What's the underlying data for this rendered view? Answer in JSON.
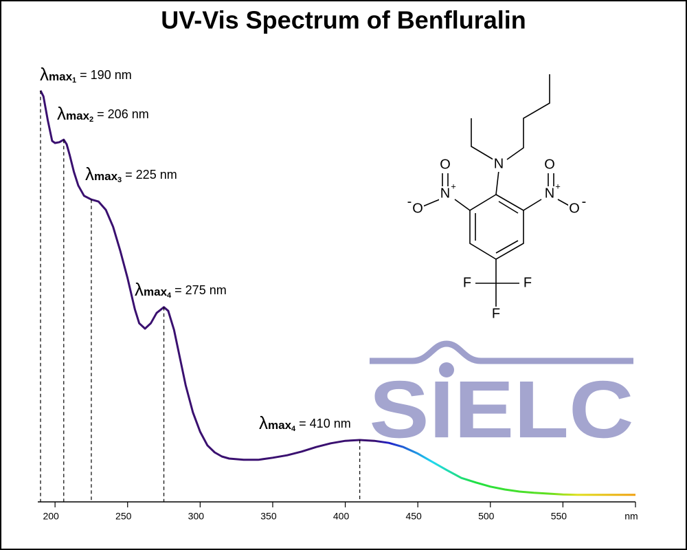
{
  "chart_data": {
    "type": "line",
    "title": "UV-Vis Spectrum of Benfluralin",
    "x": [
      190,
      192,
      195,
      198,
      200,
      203,
      206,
      208,
      210,
      213,
      216,
      220,
      225,
      230,
      235,
      240,
      245,
      250,
      255,
      258,
      262,
      266,
      270,
      275,
      278,
      282,
      286,
      290,
      295,
      300,
      305,
      310,
      315,
      320,
      330,
      340,
      350,
      360,
      370,
      380,
      390,
      400,
      410,
      420,
      430,
      440,
      450,
      460,
      470,
      480,
      490,
      500,
      510,
      520,
      530,
      540,
      550,
      560,
      580,
      600
    ],
    "series": [
      {
        "color": "#3a1070",
        "values": [
          0.997,
          0.983,
          0.925,
          0.875,
          0.87,
          0.872,
          0.878,
          0.867,
          0.842,
          0.8,
          0.767,
          0.742,
          0.733,
          0.728,
          0.708,
          0.667,
          0.608,
          0.542,
          0.467,
          0.433,
          0.42,
          0.433,
          0.458,
          0.472,
          0.463,
          0.417,
          0.35,
          0.283,
          0.217,
          0.17,
          0.137,
          0.12,
          0.11,
          0.105,
          0.102,
          0.102,
          0.107,
          0.113,
          0.122,
          0.133,
          0.142,
          0.148,
          0.15,
          0.148,
          0.143,
          0.133,
          0.117,
          0.097,
          0.077,
          0.058,
          0.047,
          0.037,
          0.03,
          0.025,
          0.022,
          0.02,
          0.018,
          0.017,
          0.017,
          0.017
        ]
      }
    ],
    "gradient": [
      {
        "x": 420,
        "color": "#3a1070"
      },
      {
        "x": 430,
        "color": "#2020c8"
      },
      {
        "x": 460,
        "color": "#20d8f0"
      },
      {
        "x": 490,
        "color": "#20e040"
      },
      {
        "x": 540,
        "color": "#60e020"
      },
      {
        "x": 560,
        "color": "#e0e020"
      },
      {
        "x": 600,
        "color": "#f0a010"
      }
    ],
    "xlim": [
      190,
      600
    ],
    "ylim": [
      0,
      1
    ],
    "xticks": [
      200,
      250,
      300,
      350,
      400,
      450,
      500,
      550,
      {
        "value": 600,
        "label": "nm"
      }
    ],
    "annotations": [
      {
        "prefix": "λ",
        "sub1": "max",
        "sub2": "1",
        "label": "= 190 nm",
        "x": 190
      },
      {
        "prefix": "λ",
        "sub1": "max",
        "sub2": "2",
        "label": "= 206 nm",
        "x": 206
      },
      {
        "prefix": "λ",
        "sub1": "max",
        "sub2": "3",
        "label": "= 225 nm",
        "x": 225
      },
      {
        "prefix": "λ",
        "sub1": "max",
        "sub2": "4",
        "label": "= 275 nm",
        "x": 275
      },
      {
        "prefix": "λ",
        "sub1": "max",
        "sub2": "4",
        "label": "= 410 nm",
        "x": 410
      }
    ],
    "watermark": "SIELC",
    "structure": {
      "atoms": [
        {
          "label": "N"
        },
        {
          "label": "O"
        },
        {
          "label": "N",
          "charge": "+"
        },
        {
          "label": "O",
          "charge": "-"
        },
        {
          "label": "O"
        },
        {
          "label": "N",
          "charge": "+"
        },
        {
          "label": "O",
          "charge": "-"
        },
        {
          "label": "F"
        },
        {
          "label": "F"
        },
        {
          "label": "F"
        }
      ]
    }
  }
}
